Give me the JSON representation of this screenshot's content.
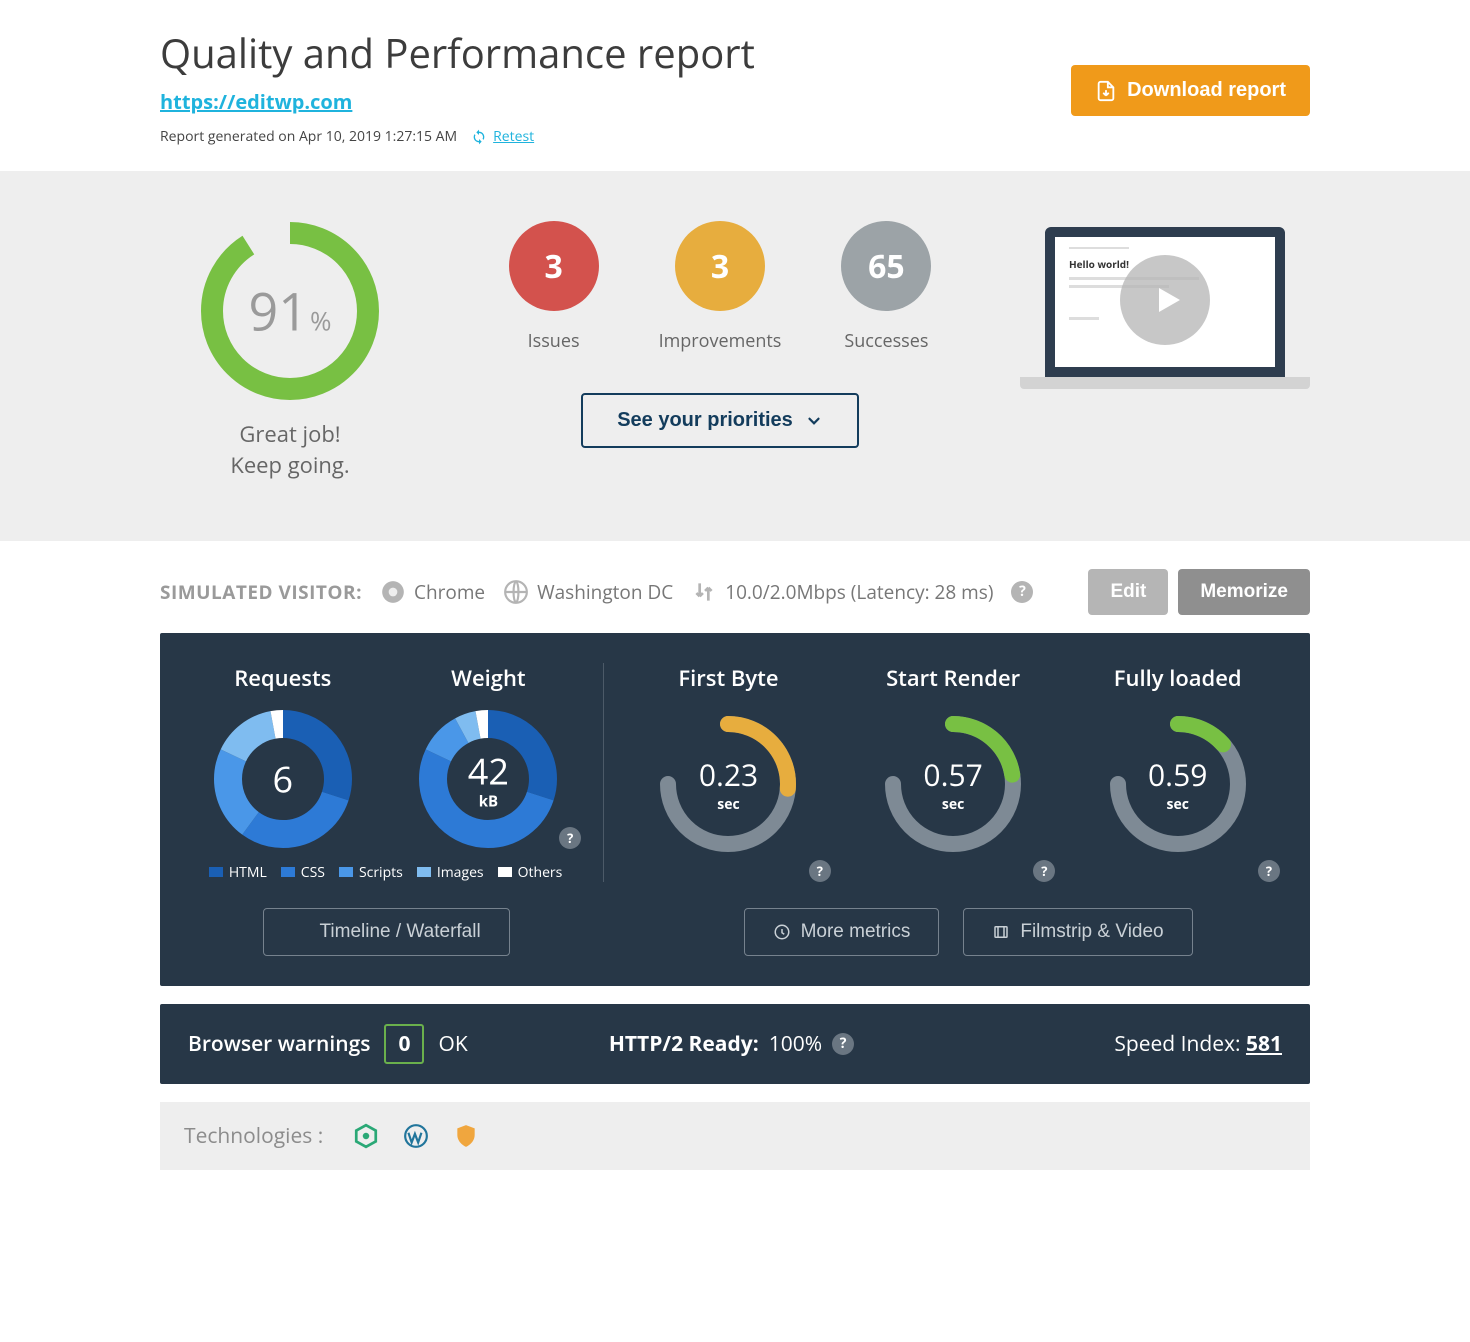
{
  "header": {
    "title": "Quality and Performance report",
    "url": "https://editwp.com",
    "generated_prefix": "Report generated on ",
    "generated_at": "Apr 10, 2019 1:27:15 AM",
    "retest_label": "Retest",
    "download_label": "Download report"
  },
  "summary": {
    "score_value": "91",
    "score_pct": "%",
    "score_ring": {
      "percent": 91,
      "color": "#78c043",
      "track_color": "#eeeeee",
      "thickness": 22
    },
    "caption_line1": "Great job!",
    "caption_line2": "Keep going.",
    "circles": [
      {
        "value": "3",
        "label": "Issues",
        "color": "#d3524d"
      },
      {
        "value": "3",
        "label": "Improvements",
        "color": "#e7ad3e"
      },
      {
        "value": "65",
        "label": "Successes",
        "color": "#9ca3a7"
      }
    ],
    "priorities_label": "See your priorities",
    "video": {
      "headline": "Hello world!"
    }
  },
  "simulated": {
    "label": "SIMULATED VISITOR:",
    "browser": "Chrome",
    "location": "Washington DC",
    "network": "10.0/2.0Mbps (Latency: 28 ms)",
    "edit_label": "Edit",
    "memorize_label": "Memorize"
  },
  "metrics": {
    "left": {
      "requests": {
        "title": "Requests",
        "value": "6",
        "segments": [
          {
            "key": "html",
            "pct": 30,
            "color": "#1a5fb4"
          },
          {
            "key": "css",
            "pct": 30,
            "color": "#2d7ad6"
          },
          {
            "key": "scripts",
            "pct": 22,
            "color": "#4a97e8"
          },
          {
            "key": "images",
            "pct": 15,
            "color": "#7fbcf0"
          },
          {
            "key": "others",
            "pct": 3,
            "color": "#ffffff"
          }
        ]
      },
      "weight": {
        "title": "Weight",
        "value": "42",
        "unit": "kB",
        "segments": [
          {
            "key": "html",
            "pct": 30,
            "color": "#1a5fb4"
          },
          {
            "key": "css",
            "pct": 52,
            "color": "#2d7ad6"
          },
          {
            "key": "scripts",
            "pct": 10,
            "color": "#4a97e8"
          },
          {
            "key": "images",
            "pct": 5,
            "color": "#7fbcf0"
          },
          {
            "key": "others",
            "pct": 3,
            "color": "#ffffff"
          }
        ]
      },
      "legend": [
        {
          "label": "HTML",
          "color": "#1a5fb4"
        },
        {
          "label": "CSS",
          "color": "#2d7ad6"
        },
        {
          "label": "Scripts",
          "color": "#4a97e8"
        },
        {
          "label": "Images",
          "color": "#7fbcf0"
        },
        {
          "label": "Others",
          "color": "#ffffff"
        }
      ]
    },
    "right": {
      "gauges": [
        {
          "title": "First Byte",
          "value": "0.23",
          "unit": "sec",
          "percent": 35,
          "color": "#e7ad3e"
        },
        {
          "title": "Start Render",
          "value": "0.57",
          "unit": "sec",
          "percent": 30,
          "color": "#78c043"
        },
        {
          "title": "Fully loaded",
          "value": "0.59",
          "unit": "sec",
          "percent": 18,
          "color": "#78c043"
        }
      ],
      "track_color": "#7e8a95"
    },
    "buttons": {
      "timeline": "Timeline / Waterfall",
      "more_metrics": "More metrics",
      "filmstrip": "Filmstrip & Video"
    }
  },
  "status": {
    "warnings_label": "Browser warnings",
    "warnings_count": "0",
    "warnings_status": "OK",
    "http2_label": "HTTP/2 Ready:",
    "http2_value": "100%",
    "speed_label": "Speed Index: ",
    "speed_value": "581"
  },
  "technologies": {
    "label": "Technologies :",
    "items": [
      {
        "name": "gtmetrix-icon",
        "color": "#2aa876"
      },
      {
        "name": "wordpress-icon",
        "color": "#21759b"
      },
      {
        "name": "shield-icon",
        "color": "#f0a63e"
      }
    ]
  }
}
